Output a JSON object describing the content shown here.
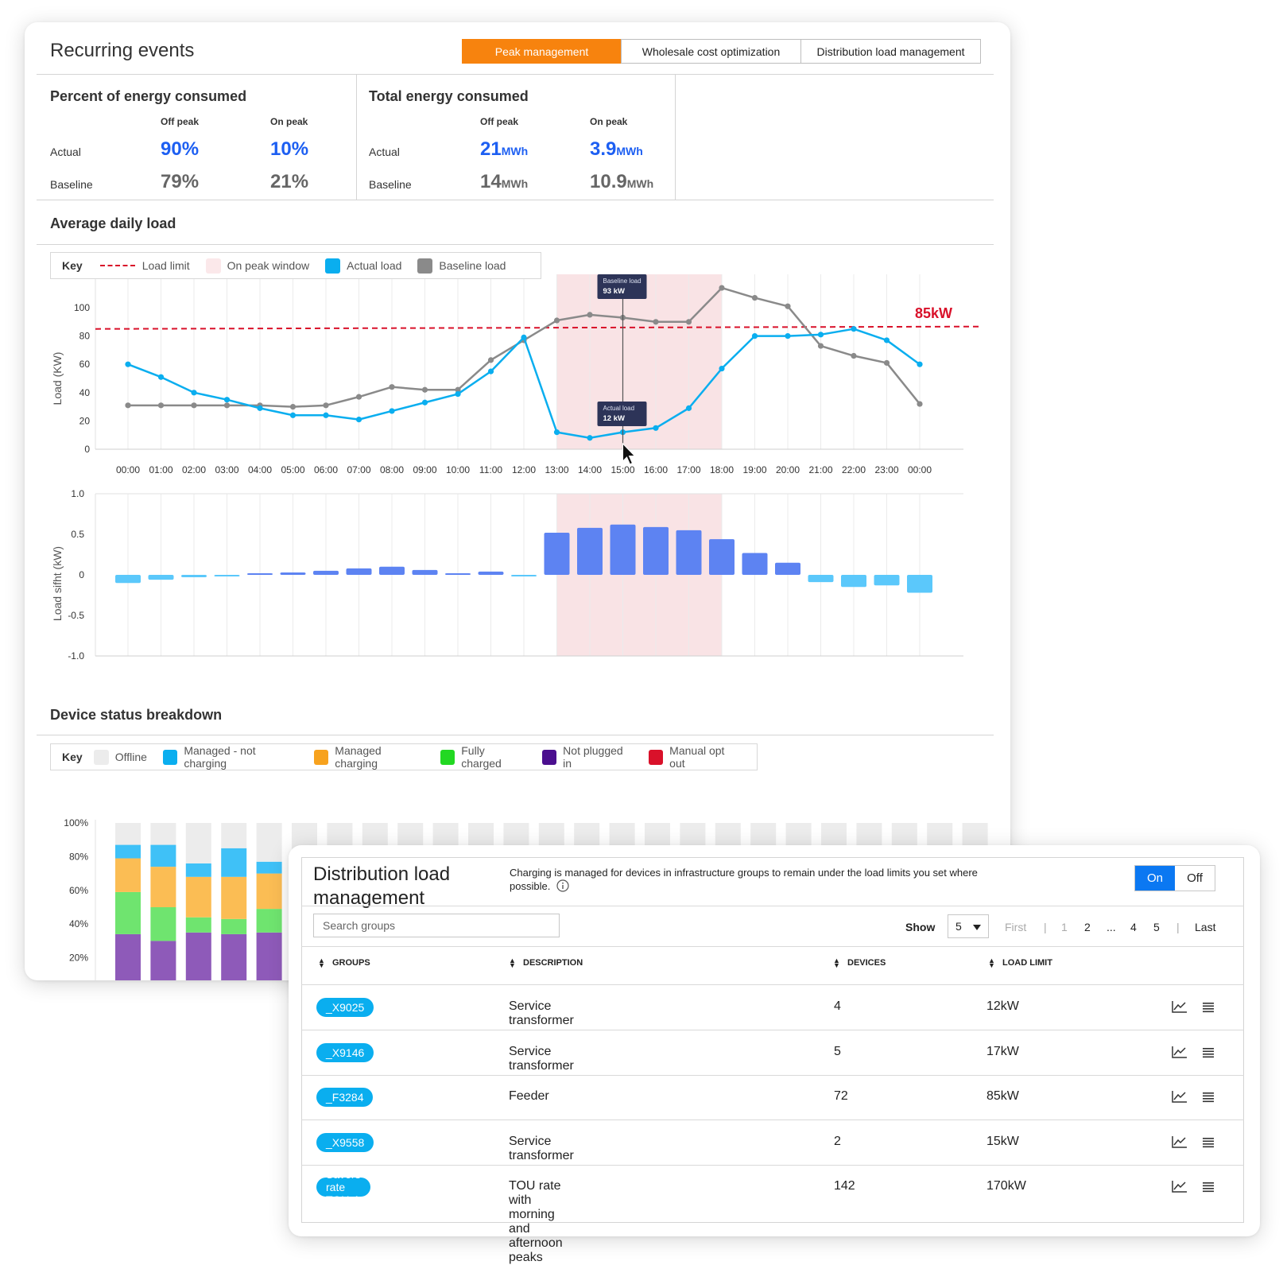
{
  "recurring": {
    "title": "Recurring events",
    "tabs": [
      {
        "label": "Peak management",
        "active": true
      },
      {
        "label": "Wholesale cost optimization",
        "active": false
      },
      {
        "label": "Distribution load management",
        "active": false
      }
    ]
  },
  "percent_energy": {
    "title": "Percent of energy consumed",
    "col_off": "Off peak",
    "col_on": "On peak",
    "row_actual": "Actual",
    "row_baseline": "Baseline",
    "actual_off": "90%",
    "actual_on": "10%",
    "baseline_off": "79%",
    "baseline_on": "21%"
  },
  "total_energy": {
    "title": "Total energy consumed",
    "col_off": "Off peak",
    "col_on": "On peak",
    "row_actual": "Actual",
    "row_baseline": "Baseline",
    "unit": "MWh",
    "actual_off": "21",
    "actual_on": "3.9",
    "baseline_off": "14",
    "baseline_on": "10.9"
  },
  "avg_daily_load": {
    "title": "Average daily load",
    "legend": {
      "key": "Key",
      "load_limit": "Load limit",
      "on_peak_window": "On peak window",
      "actual_load": "Actual load",
      "baseline_load": "Baseline load"
    },
    "limit_label": "85kW",
    "tooltip_baseline": {
      "title": "Baseline load",
      "value": "93 kW"
    },
    "tooltip_actual": {
      "title": "Actual load",
      "value": "12 kW"
    }
  },
  "device_status": {
    "title": "Device status breakdown",
    "legend": {
      "key": "Key",
      "offline": "Offline",
      "managed_not_charging": "Managed - not charging",
      "managed_charging": "Managed charging",
      "fully_charged": "Fully charged",
      "not_plugged_in": "Not plugged in",
      "manual_opt_out": "Manual opt out"
    }
  },
  "colors": {
    "accent_orange": "#f7830e",
    "actual_blue": "#0aaeef",
    "baseline_gray": "#8a8a8a",
    "limit_red": "#d9112a",
    "peak_window": "#f9e3e5",
    "shift_positive": "#5d83f2",
    "shift_negative": "#5bc8fb",
    "offline": "#ececec",
    "managed_not_charging": "#3fc1f7",
    "managed_charging": "#fbbd54",
    "fully_charged": "#6fe46f",
    "not_plugged_in": "#8e5ab9",
    "manual_opt_out": "#d9112a",
    "primary": "#0b78f2"
  },
  "chart_data": [
    {
      "type": "line",
      "x": [
        "00:00",
        "01:00",
        "02:00",
        "03:00",
        "04:00",
        "05:00",
        "06:00",
        "07:00",
        "08:00",
        "09:00",
        "10:00",
        "11:00",
        "12:00",
        "13:00",
        "14:00",
        "15:00",
        "16:00",
        "17:00",
        "18:00",
        "19:00",
        "20:00",
        "21:00",
        "22:00",
        "23:00",
        "00:00"
      ],
      "ylabel": "Load (KW)",
      "ylim": [
        0,
        100
      ],
      "yticks": [
        0,
        20,
        40,
        60,
        80,
        100
      ],
      "on_peak_window": [
        "13:00",
        "18:00"
      ],
      "load_limit": 85,
      "series": [
        {
          "name": "Actual load",
          "values": [
            60,
            51,
            40,
            35,
            29,
            24,
            24,
            21,
            27,
            33,
            39,
            55,
            79,
            12,
            8,
            12,
            15,
            29,
            57,
            80,
            80,
            81,
            85,
            77,
            60
          ]
        },
        {
          "name": "Baseline load",
          "values": [
            31,
            31,
            31,
            31,
            31,
            30,
            31,
            37,
            44,
            42,
            42,
            63,
            77,
            91,
            95,
            93,
            90,
            90,
            114,
            107,
            101,
            73,
            66,
            61,
            32
          ]
        }
      ],
      "grid": true
    },
    {
      "type": "bar",
      "categories": [
        "00:00",
        "01:00",
        "02:00",
        "03:00",
        "04:00",
        "05:00",
        "06:00",
        "07:00",
        "08:00",
        "09:00",
        "10:00",
        "11:00",
        "12:00",
        "13:00",
        "14:00",
        "15:00",
        "16:00",
        "17:00",
        "18:00",
        "19:00",
        "20:00",
        "21:00",
        "22:00",
        "23:00",
        "00:00"
      ],
      "values": [
        -0.1,
        -0.06,
        -0.03,
        -0.02,
        0.02,
        0.03,
        0.05,
        0.08,
        0.1,
        0.06,
        0.02,
        0.04,
        -0.02,
        0.52,
        0.58,
        0.62,
        0.59,
        0.55,
        0.44,
        0.27,
        0.15,
        -0.09,
        -0.15,
        -0.13,
        -0.22
      ],
      "ylabel": "Load sifht (kW)",
      "ylim": [
        -1.0,
        1.0
      ],
      "yticks": [
        -1.0,
        -0.5,
        0,
        0.5,
        1.0
      ],
      "ytick_labels": [
        "-1.0",
        "-0.5",
        "0",
        "0.5",
        "1.0"
      ],
      "on_peak_window": [
        "13:00",
        "18:00"
      ]
    },
    {
      "type": "bar",
      "stacked": true,
      "ylim": [
        0,
        100
      ],
      "ytick_labels": [
        "0%",
        "20%",
        "40%",
        "60%",
        "80%",
        "100%"
      ],
      "series": [
        {
          "name": "Not plugged in",
          "values": [
            34,
            30,
            35,
            34,
            35,
            0,
            0,
            0,
            0,
            0,
            0,
            0,
            0,
            0,
            0,
            0,
            0,
            0,
            0,
            0,
            0,
            0,
            0,
            0,
            0
          ]
        },
        {
          "name": "Fully charged",
          "values": [
            25,
            20,
            9,
            9,
            14,
            0,
            0,
            0,
            0,
            0,
            0,
            0,
            0,
            0,
            0,
            0,
            0,
            0,
            0,
            0,
            0,
            0,
            0,
            0,
            0
          ]
        },
        {
          "name": "Managed charging",
          "values": [
            20,
            24,
            24,
            25,
            21,
            5,
            0,
            0,
            0,
            2,
            5,
            0,
            0,
            2,
            5,
            0,
            0,
            0,
            7,
            0,
            7,
            0,
            0,
            2,
            5
          ]
        },
        {
          "name": "Managed - not charging",
          "values": [
            8,
            13,
            8,
            17,
            7,
            9,
            12,
            15,
            5,
            12,
            8,
            8,
            8,
            11,
            8,
            5,
            12,
            13,
            9,
            16,
            9,
            9,
            19,
            16,
            8
          ]
        },
        {
          "name": "Offline",
          "values": [
            13,
            13,
            24,
            15,
            23,
            86,
            88,
            85,
            95,
            86,
            87,
            92,
            92,
            87,
            87,
            95,
            88,
            87,
            84,
            84,
            84,
            91,
            81,
            82,
            87
          ]
        }
      ]
    }
  ],
  "dlm": {
    "title": "Distribution load management",
    "description": "Charging is managed for devices in infrastructure groups to remain under the load limits you set where possible.",
    "toggle_on": "On",
    "toggle_off": "Off",
    "search_placeholder": "Search groups",
    "show_label": "Show",
    "show_value": "5",
    "pager": {
      "first": "First",
      "sep": "|",
      "p1": "1",
      "p2": "2",
      "ellipsis": "...",
      "p4": "4",
      "p5": "5",
      "last": "Last"
    },
    "columns": {
      "groups": "GROUPS",
      "description": "DESCRIPTION",
      "devices": "DEVICES",
      "load_limit": "LOAD LIMIT"
    },
    "rows": [
      {
        "group": "_X9025",
        "description": "Service transformer",
        "devices": "4",
        "load_limit": "12kW"
      },
      {
        "group": "_X9146",
        "description": "Service transformer",
        "devices": "5",
        "load_limit": "17kW"
      },
      {
        "group": "_F3284",
        "description": "Feeder",
        "devices": "72",
        "load_limit": "85kW"
      },
      {
        "group": "_X9558",
        "description": "Service transformer",
        "devices": "2",
        "load_limit": "15kW"
      },
      {
        "group": "Savers rate TOU-A",
        "description": "TOU rate with morning and afternoon peaks",
        "devices": "142",
        "load_limit": "170kW"
      }
    ]
  }
}
